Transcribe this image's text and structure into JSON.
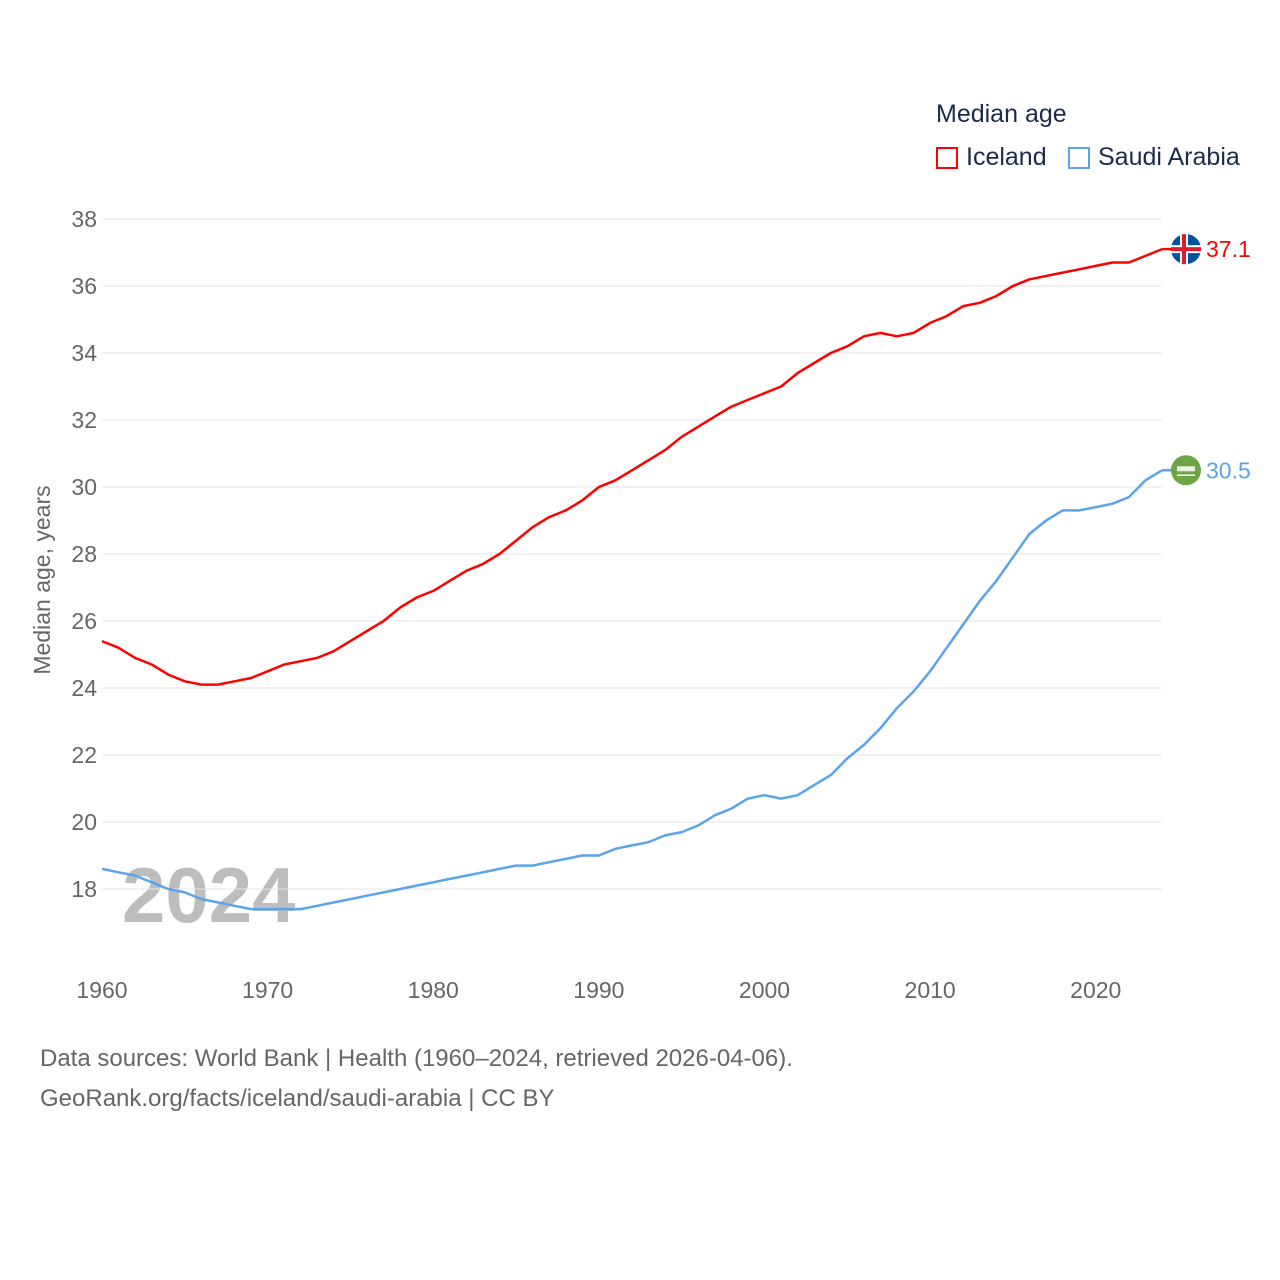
{
  "chart_data": {
    "type": "line",
    "title": "Median age",
    "ylabel": "Median age, years",
    "xlabel": "",
    "ylim": [
      17,
      38
    ],
    "xlim": [
      1960,
      2024
    ],
    "yticks": [
      "18",
      "20",
      "22",
      "24",
      "26",
      "28",
      "30",
      "32",
      "34",
      "36",
      "38"
    ],
    "xticks": [
      "1960",
      "1970",
      "1980",
      "1990",
      "2000",
      "2010",
      "2020"
    ],
    "grid": true,
    "legend_placement": "top-right",
    "year_watermark": "2024",
    "x": [
      1960,
      1961,
      1962,
      1963,
      1964,
      1965,
      1966,
      1967,
      1968,
      1969,
      1970,
      1971,
      1972,
      1973,
      1974,
      1975,
      1976,
      1977,
      1978,
      1979,
      1980,
      1981,
      1982,
      1983,
      1984,
      1985,
      1986,
      1987,
      1988,
      1989,
      1990,
      1991,
      1992,
      1993,
      1994,
      1995,
      1996,
      1997,
      1998,
      1999,
      2000,
      2001,
      2002,
      2003,
      2004,
      2005,
      2006,
      2007,
      2008,
      2009,
      2010,
      2011,
      2012,
      2013,
      2014,
      2015,
      2016,
      2017,
      2018,
      2019,
      2020,
      2021,
      2022,
      2023,
      2024
    ],
    "series": [
      {
        "name": "Iceland",
        "color": "#ff0000",
        "end_label": "37.1",
        "values": [
          25.4,
          25.2,
          24.9,
          24.7,
          24.4,
          24.2,
          24.1,
          24.1,
          24.2,
          24.3,
          24.5,
          24.7,
          24.8,
          24.9,
          25.1,
          25.4,
          25.7,
          26.0,
          26.4,
          26.7,
          26.9,
          27.2,
          27.5,
          27.7,
          28.0,
          28.4,
          28.8,
          29.1,
          29.3,
          29.6,
          30.0,
          30.2,
          30.5,
          30.8,
          31.1,
          31.5,
          31.8,
          32.1,
          32.4,
          32.6,
          32.8,
          33.0,
          33.4,
          33.7,
          34.0,
          34.2,
          34.5,
          34.6,
          34.5,
          34.6,
          34.9,
          35.1,
          35.4,
          35.5,
          35.7,
          36.0,
          36.2,
          36.3,
          36.4,
          36.5,
          36.6,
          36.7,
          36.7,
          36.9,
          37.1
        ]
      },
      {
        "name": "Saudi Arabia",
        "color": "#5ba4ea",
        "end_label": "30.5",
        "values": [
          18.6,
          18.5,
          18.4,
          18.2,
          18.0,
          17.9,
          17.7,
          17.6,
          17.5,
          17.4,
          17.4,
          17.4,
          17.4,
          17.5,
          17.6,
          17.7,
          17.8,
          17.9,
          18.0,
          18.1,
          18.2,
          18.3,
          18.4,
          18.5,
          18.6,
          18.7,
          18.7,
          18.8,
          18.9,
          19.0,
          19.0,
          19.2,
          19.3,
          19.4,
          19.6,
          19.7,
          19.9,
          20.2,
          20.4,
          20.7,
          20.8,
          20.7,
          20.8,
          21.1,
          21.4,
          21.9,
          22.3,
          22.8,
          23.4,
          23.9,
          24.5,
          25.2,
          25.9,
          26.6,
          27.2,
          27.9,
          28.6,
          29.0,
          29.3,
          29.3,
          29.4,
          29.5,
          29.7,
          30.2,
          30.5
        ]
      }
    ]
  },
  "footer": {
    "line1": "Data sources: World Bank | Health (1960–2024, retrieved 2026-04-06).",
    "line2": "GeoRank.org/facts/iceland/saudi-arabia | CC BY"
  }
}
